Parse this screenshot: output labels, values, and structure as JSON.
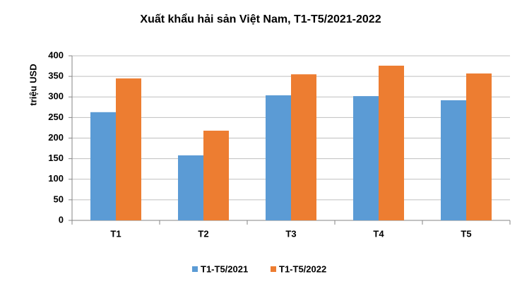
{
  "chart_data": {
    "type": "bar",
    "title": "Xuất khẩu hải sản Việt Nam, T1-T5/2021-2022",
    "y_label": "triệu USD",
    "categories": [
      "T1",
      "T2",
      "T3",
      "T4",
      "T5"
    ],
    "series": [
      {
        "name": "T1-T5/2021",
        "color": "#5b9bd5",
        "values": [
          263,
          158,
          304,
          302,
          292
        ]
      },
      {
        "name": "T1-T5/2022",
        "color": "#ed7d31",
        "values": [
          345,
          218,
          355,
          376,
          357
        ]
      }
    ],
    "ylim": [
      0,
      400
    ],
    "yticks": [
      0,
      50,
      100,
      150,
      200,
      250,
      300,
      350,
      400
    ],
    "grid": true,
    "legend": "bottom"
  }
}
